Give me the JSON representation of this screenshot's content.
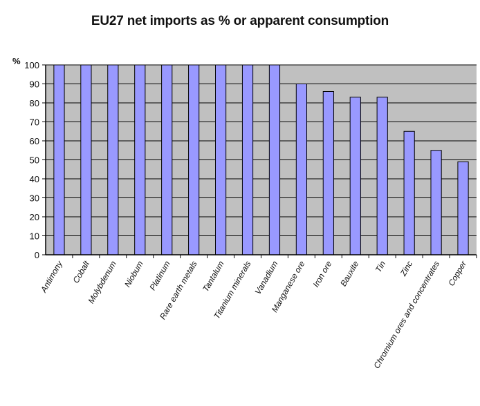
{
  "chart_data": {
    "type": "bar",
    "title": "EU27 net imports as % or apparent consumption",
    "ylabel": "%",
    "xlabel": "",
    "ylim": [
      0,
      100
    ],
    "yticks": [
      0,
      10,
      20,
      30,
      40,
      50,
      60,
      70,
      80,
      90,
      100
    ],
    "grid": true,
    "legend": "none",
    "categories": [
      "Antimony",
      "Cobalt",
      "Molybdenum",
      "Niobum",
      "Platinum",
      "Rare earth metals",
      "Tantalum",
      "Titanium minerals",
      "Vanadium",
      "Manganese ore",
      "Iron ore",
      "Bauxite",
      "Tin",
      "Zinc",
      "Chromium ores and concentrates",
      "Copper"
    ],
    "values": [
      100,
      100,
      100,
      100,
      100,
      100,
      100,
      100,
      100,
      90,
      86,
      83,
      83,
      65,
      55,
      49
    ],
    "colors": {
      "plot_background": "#c0c0c0",
      "bar_fill": "#9999ff",
      "bar_stroke": "#000000",
      "gridline": "#000000"
    }
  }
}
